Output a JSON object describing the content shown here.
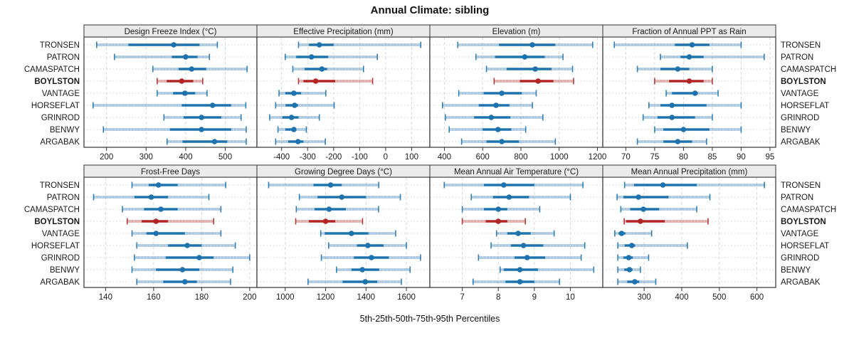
{
  "title": "Annual Climate: sibling",
  "caption": "5th-25th-50th-75th-95th Percentiles",
  "colors": {
    "blue": "#1e73af",
    "red": "#b32424",
    "strip_bg": "#ebebeb",
    "panel_border": "#333333",
    "grid_dash": "#d9d9d9",
    "grid_dot": "#cfcfcf",
    "text": "#1a1a1a"
  },
  "highlight_station": "BOYLSTON",
  "chart_data": {
    "type": "dotplot-percentiles",
    "percentile_labels": [
      "5th",
      "25th",
      "50th",
      "75th",
      "95th"
    ],
    "legend_position": "none",
    "grid": "on",
    "stations": [
      "TRONSEN",
      "PATRON",
      "CAMASPATCH",
      "BOYLSTON",
      "VANTAGE",
      "HORSEFLAT",
      "GRINROD",
      "BENWY",
      "ARGABAK"
    ],
    "panels": [
      {
        "title": "Design Freeze Index (°C)",
        "row": 0,
        "col": 0,
        "xlim": [
          143,
          580
        ],
        "ticks": [
          200,
          300,
          400,
          500
        ],
        "values": {
          "TRONSEN": [
            175,
            255,
            370,
            435,
            480
          ],
          "PATRON": [
            220,
            365,
            400,
            430,
            460
          ],
          "CAMASPATCH": [
            317,
            382,
            415,
            452,
            555
          ],
          "BOYLSTON": [
            328,
            352,
            390,
            419,
            443
          ],
          "VANTAGE": [
            328,
            368,
            398,
            424,
            454
          ],
          "HORSEFLAT": [
            166,
            390,
            468,
            515,
            552
          ],
          "GRINROD": [
            345,
            395,
            440,
            490,
            540
          ],
          "BENWY": [
            192,
            360,
            440,
            515,
            553
          ],
          "ARGABAK": [
            353,
            392,
            473,
            505,
            553
          ]
        }
      },
      {
        "title": "Effective Precipitation (mm)",
        "row": 0,
        "col": 1,
        "xlim": [
          -495,
          170
        ],
        "ticks": [
          -400,
          -300,
          -200,
          -100,
          0,
          100
        ],
        "values": {
          "TRONSEN": [
            -335,
            -295,
            -255,
            -200,
            135
          ],
          "PATRON": [
            -386,
            -344,
            -285,
            -221,
            -32
          ],
          "CAMASPATCH": [
            -357,
            -312,
            -245,
            -225,
            -85
          ],
          "BOYLSTON": [
            -335,
            -316,
            -269,
            -194,
            -50
          ],
          "VANTAGE": [
            -410,
            -386,
            -353,
            -325,
            -230
          ],
          "HORSEFLAT": [
            -423,
            -385,
            -350,
            -337,
            -198
          ],
          "GRINROD": [
            -446,
            -397,
            -362,
            -335,
            -255
          ],
          "BENWY": [
            -414,
            -386,
            -353,
            -345,
            -305
          ],
          "ARGABAK": [
            -423,
            -375,
            -337,
            -316,
            -232
          ]
        }
      },
      {
        "title": "Elevation (m)",
        "row": 0,
        "col": 2,
        "xlim": [
          324,
          1228
        ],
        "ticks": [
          400,
          600,
          800,
          1000,
          1200
        ],
        "values": {
          "TRONSEN": [
            470,
            685,
            860,
            980,
            1175
          ],
          "PATRON": [
            565,
            665,
            820,
            925,
            1020
          ],
          "CAMASPATCH": [
            620,
            725,
            875,
            960,
            1070
          ],
          "BOYLSTON": [
            660,
            795,
            890,
            970,
            1075
          ],
          "VANTAGE": [
            475,
            605,
            700,
            805,
            880
          ],
          "HORSEFLAT": [
            390,
            580,
            670,
            740,
            860
          ],
          "GRINROD": [
            405,
            555,
            645,
            745,
            915
          ],
          "BENWY": [
            425,
            600,
            680,
            750,
            825
          ],
          "ARGABAK": [
            490,
            620,
            700,
            790,
            980
          ]
        }
      },
      {
        "title": "Fraction of Annual PPT as Rain",
        "row": 0,
        "col": 3,
        "xlim": [
          66,
          96
        ],
        "ticks": [
          70,
          75,
          80,
          85,
          90,
          95
        ],
        "values": {
          "TRONSEN": [
            68,
            78.5,
            81.5,
            84.5,
            90
          ],
          "PATRON": [
            76,
            79.5,
            81,
            83.5,
            94
          ],
          "CAMASPATCH": [
            72,
            76,
            79,
            81,
            85
          ],
          "BOYLSTON": [
            75,
            77.5,
            81,
            83.5,
            85
          ],
          "VANTAGE": [
            77,
            78,
            82,
            82.5,
            86
          ],
          "HORSEFLAT": [
            74,
            76,
            78,
            84,
            90
          ],
          "GRINROD": [
            73,
            75.5,
            78,
            82,
            85
          ],
          "BENWY": [
            75,
            76.5,
            80,
            84.5,
            90
          ],
          "ARGABAK": [
            72,
            76.5,
            79,
            81.5,
            84
          ]
        }
      },
      {
        "title": "Frost-Free Days",
        "row": 1,
        "col": 0,
        "xlim": [
          131,
          203
        ],
        "ticks": [
          140,
          160,
          180,
          200
        ],
        "values": {
          "TRONSEN": [
            151,
            158,
            162,
            170,
            190
          ],
          "PATRON": [
            135,
            152,
            159,
            166,
            183
          ],
          "CAMASPATCH": [
            147,
            156,
            163,
            170,
            188
          ],
          "BOYLSTON": [
            149,
            155,
            161,
            166,
            185
          ],
          "VANTAGE": [
            151,
            157,
            161,
            173,
            188
          ],
          "HORSEFLAT": [
            153,
            166,
            174,
            180,
            194
          ],
          "GRINROD": [
            152,
            165,
            179,
            185,
            200
          ],
          "BENWY": [
            151,
            161,
            172,
            179,
            193
          ],
          "ARGABAK": [
            153,
            164,
            173,
            178,
            192
          ]
        }
      },
      {
        "title": "Growing Degree Days (°C)",
        "row": 1,
        "col": 1,
        "xlim": [
          860,
          1716
        ],
        "ticks": [
          1000,
          1200,
          1400,
          1600
        ],
        "values": {
          "TRONSEN": [
            918,
            1140,
            1225,
            1280,
            1463
          ],
          "PATRON": [
            1070,
            1160,
            1280,
            1400,
            1570
          ],
          "CAMASPATCH": [
            1055,
            1145,
            1217,
            1300,
            1462
          ],
          "BOYLSTON": [
            1052,
            1117,
            1200,
            1248,
            1383
          ],
          "VANTAGE": [
            1176,
            1196,
            1328,
            1412,
            1547
          ],
          "HORSEFLAT": [
            1215,
            1355,
            1409,
            1487,
            1600
          ],
          "GRINROD": [
            1179,
            1340,
            1427,
            1513,
            1670
          ],
          "BENWY": [
            1254,
            1328,
            1382,
            1465,
            1618
          ],
          "ARGABAK": [
            1113,
            1284,
            1396,
            1456,
            1575
          ]
        }
      },
      {
        "title": "Mean Annual Air Temperature (°C)",
        "row": 1,
        "col": 2,
        "xlim": [
          6.1,
          10.9
        ],
        "ticks": [
          7,
          8,
          9,
          10
        ],
        "values": {
          "TRONSEN": [
            6.5,
            7.6,
            8.15,
            9.0,
            10.35
          ],
          "PATRON": [
            7.25,
            7.85,
            8.3,
            8.85,
            10.0
          ],
          "CAMASPATCH": [
            7.0,
            7.6,
            8.0,
            8.25,
            9.15
          ],
          "BOYLSTON": [
            7.0,
            7.65,
            8.0,
            8.25,
            8.75
          ],
          "VANTAGE": [
            7.95,
            8.25,
            8.55,
            8.9,
            9.55
          ],
          "HORSEFLAT": [
            7.8,
            8.35,
            8.7,
            9.25,
            10.4
          ],
          "GRINROD": [
            7.45,
            8.45,
            8.8,
            9.3,
            10.3
          ],
          "BENWY": [
            8.05,
            8.15,
            8.6,
            9.1,
            10.65
          ],
          "ARGABAK": [
            7.3,
            8.2,
            8.6,
            9.0,
            9.7
          ]
        }
      },
      {
        "title": "Mean Annual Precipitation (mm)",
        "row": 1,
        "col": 3,
        "xlim": [
          190,
          650
        ],
        "ticks": [
          300,
          400,
          500,
          600
        ],
        "values": {
          "TRONSEN": [
            248,
            273,
            350,
            440,
            620
          ],
          "PATRON": [
            228,
            245,
            285,
            365,
            475
          ],
          "CAMASPATCH": [
            238,
            263,
            298,
            340,
            440
          ],
          "BOYLSTON": [
            247,
            252,
            290,
            355,
            470
          ],
          "VANTAGE": [
            222,
            232,
            240,
            250,
            320
          ],
          "HORSEFLAT": [
            230,
            248,
            267,
            276,
            415
          ],
          "GRINROD": [
            230,
            245,
            259,
            270,
            312
          ],
          "BENWY": [
            230,
            247,
            261,
            269,
            290
          ],
          "ARGABAK": [
            230,
            255,
            275,
            287,
            331
          ]
        }
      }
    ]
  }
}
